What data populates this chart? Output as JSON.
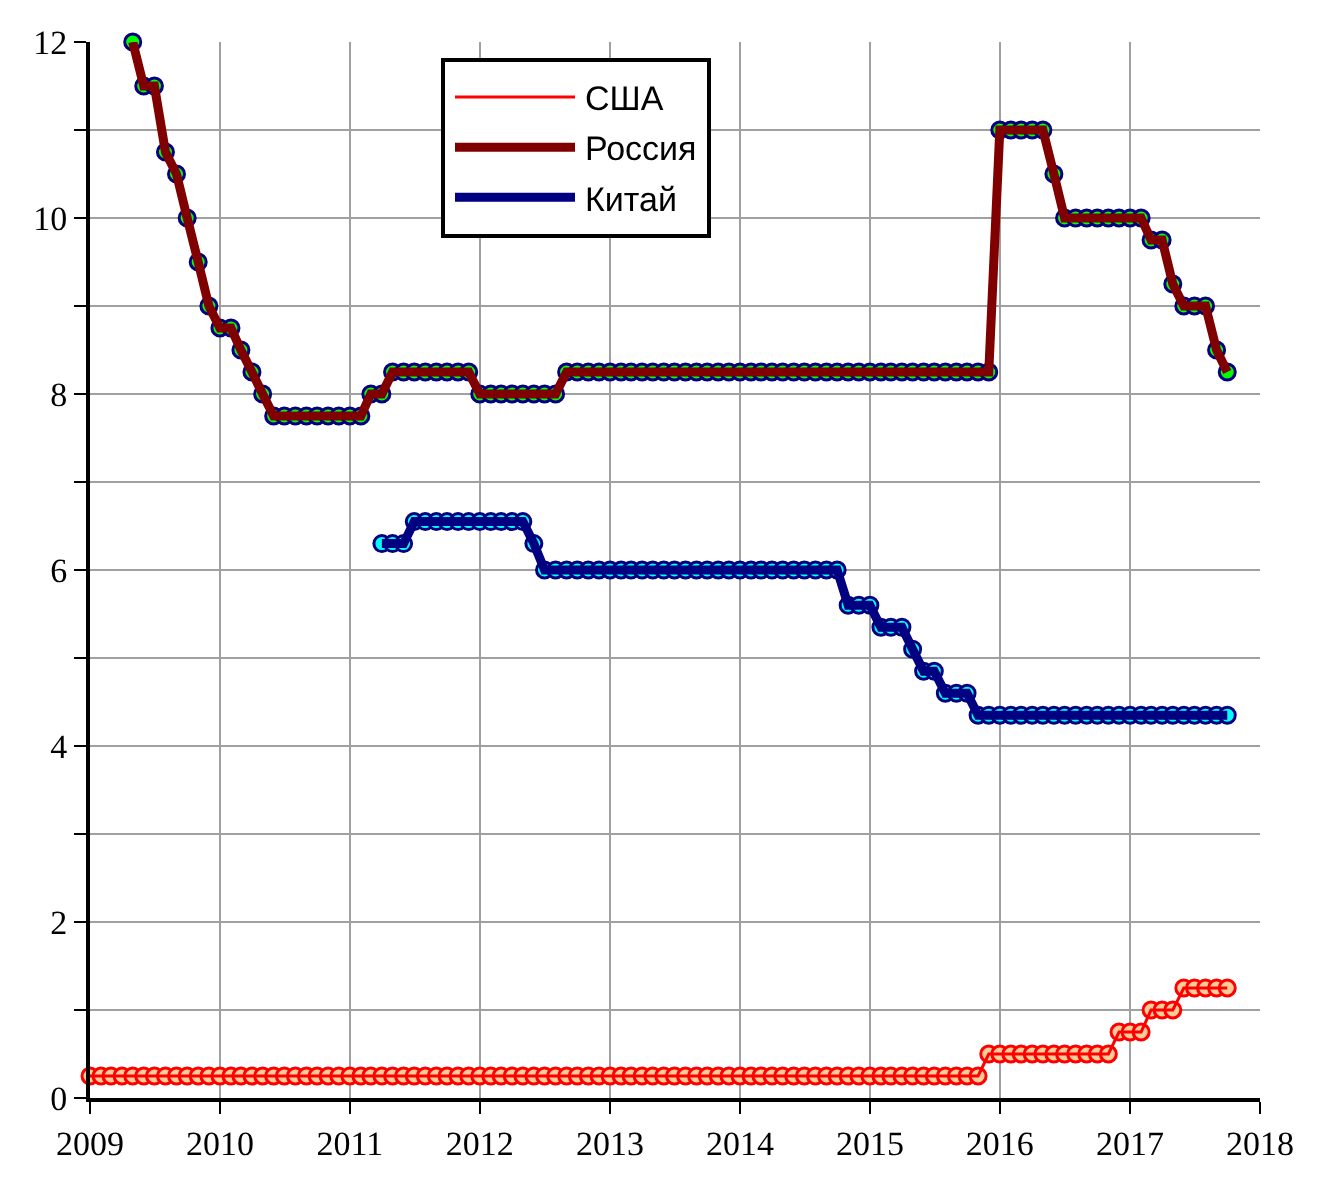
{
  "chart_data": {
    "type": "line",
    "x": [
      "2009-01",
      "2009-02",
      "2009-03",
      "2009-04",
      "2009-05",
      "2009-06",
      "2009-07",
      "2009-08",
      "2009-09",
      "2009-10",
      "2009-11",
      "2009-12",
      "2010-01",
      "2010-02",
      "2010-03",
      "2010-04",
      "2010-05",
      "2010-06",
      "2010-07",
      "2010-08",
      "2010-09",
      "2010-10",
      "2010-11",
      "2010-12",
      "2011-01",
      "2011-02",
      "2011-03",
      "2011-04",
      "2011-05",
      "2011-06",
      "2011-07",
      "2011-08",
      "2011-09",
      "2011-10",
      "2011-11",
      "2011-12",
      "2012-01",
      "2012-02",
      "2012-03",
      "2012-04",
      "2012-05",
      "2012-06",
      "2012-07",
      "2012-08",
      "2012-09",
      "2012-10",
      "2012-11",
      "2012-12",
      "2013-01",
      "2013-02",
      "2013-03",
      "2013-04",
      "2013-05",
      "2013-06",
      "2013-07",
      "2013-08",
      "2013-09",
      "2013-10",
      "2013-11",
      "2013-12",
      "2014-01",
      "2014-02",
      "2014-03",
      "2014-04",
      "2014-05",
      "2014-06",
      "2014-07",
      "2014-08",
      "2014-09",
      "2014-10",
      "2014-11",
      "2014-12",
      "2015-01",
      "2015-02",
      "2015-03",
      "2015-04",
      "2015-05",
      "2015-06",
      "2015-07",
      "2015-08",
      "2015-09",
      "2015-10",
      "2015-11",
      "2015-12",
      "2016-01",
      "2016-02",
      "2016-03",
      "2016-04",
      "2016-05",
      "2016-06",
      "2016-07",
      "2016-08",
      "2016-09",
      "2016-10",
      "2016-11",
      "2016-12",
      "2017-01",
      "2017-02",
      "2017-03",
      "2017-04",
      "2017-05",
      "2017-06",
      "2017-07",
      "2017-08",
      "2017-09",
      "2017-10"
    ],
    "series": [
      {
        "name": "США",
        "color": "#ff0000",
        "values": [
          0.25,
          0.25,
          0.25,
          0.25,
          0.25,
          0.25,
          0.25,
          0.25,
          0.25,
          0.25,
          0.25,
          0.25,
          0.25,
          0.25,
          0.25,
          0.25,
          0.25,
          0.25,
          0.25,
          0.25,
          0.25,
          0.25,
          0.25,
          0.25,
          0.25,
          0.25,
          0.25,
          0.25,
          0.25,
          0.25,
          0.25,
          0.25,
          0.25,
          0.25,
          0.25,
          0.25,
          0.25,
          0.25,
          0.25,
          0.25,
          0.25,
          0.25,
          0.25,
          0.25,
          0.25,
          0.25,
          0.25,
          0.25,
          0.25,
          0.25,
          0.25,
          0.25,
          0.25,
          0.25,
          0.25,
          0.25,
          0.25,
          0.25,
          0.25,
          0.25,
          0.25,
          0.25,
          0.25,
          0.25,
          0.25,
          0.25,
          0.25,
          0.25,
          0.25,
          0.25,
          0.25,
          0.25,
          0.25,
          0.25,
          0.25,
          0.25,
          0.25,
          0.25,
          0.25,
          0.25,
          0.25,
          0.25,
          0.25,
          0.5,
          0.5,
          0.5,
          0.5,
          0.5,
          0.5,
          0.5,
          0.5,
          0.5,
          0.5,
          0.5,
          0.5,
          0.75,
          0.75,
          0.75,
          1.0,
          1.0,
          1.0,
          1.25,
          1.25,
          1.25,
          1.25,
          1.25
        ]
      },
      {
        "name": "Россия",
        "color": "#800000",
        "values": [
          null,
          null,
          null,
          null,
          12,
          11.5,
          11.5,
          10.75,
          10.5,
          10,
          9.5,
          9,
          8.75,
          8.75,
          8.5,
          8.25,
          8,
          7.75,
          7.75,
          7.75,
          7.75,
          7.75,
          7.75,
          7.75,
          7.75,
          7.75,
          8,
          8,
          8.25,
          8.25,
          8.25,
          8.25,
          8.25,
          8.25,
          8.25,
          8.25,
          8,
          8,
          8,
          8,
          8,
          8,
          8,
          8,
          8.25,
          8.25,
          8.25,
          8.25,
          8.25,
          8.25,
          8.25,
          8.25,
          8.25,
          8.25,
          8.25,
          8.25,
          8.25,
          8.25,
          8.25,
          8.25,
          8.25,
          8.25,
          8.25,
          8.25,
          8.25,
          8.25,
          8.25,
          8.25,
          8.25,
          8.25,
          8.25,
          8.25,
          8.25,
          8.25,
          8.25,
          8.25,
          8.25,
          8.25,
          8.25,
          8.25,
          8.25,
          8.25,
          8.25,
          8.25,
          11,
          11,
          11,
          11,
          11,
          10.5,
          10,
          10,
          10,
          10,
          10,
          10,
          10,
          10,
          9.75,
          9.75,
          9.25,
          9,
          9,
          9,
          8.5,
          8.25
        ]
      },
      {
        "name": "Китай",
        "color": "#000080",
        "values": [
          null,
          null,
          null,
          null,
          null,
          null,
          null,
          null,
          null,
          null,
          null,
          null,
          null,
          null,
          null,
          null,
          null,
          null,
          null,
          null,
          null,
          null,
          null,
          null,
          null,
          null,
          null,
          6.3,
          6.3,
          6.3,
          6.55,
          6.55,
          6.55,
          6.55,
          6.55,
          6.55,
          6.55,
          6.55,
          6.55,
          6.55,
          6.55,
          6.3,
          6.0,
          6.0,
          6.0,
          6.0,
          6.0,
          6.0,
          6.0,
          6.0,
          6.0,
          6.0,
          6.0,
          6.0,
          6.0,
          6.0,
          6.0,
          6.0,
          6.0,
          6.0,
          6.0,
          6.0,
          6.0,
          6.0,
          6.0,
          6.0,
          6.0,
          6.0,
          6.0,
          6.0,
          5.6,
          5.6,
          5.6,
          5.35,
          5.35,
          5.35,
          5.1,
          4.85,
          4.85,
          4.6,
          4.6,
          4.6,
          4.35,
          4.35,
          4.35,
          4.35,
          4.35,
          4.35,
          4.35,
          4.35,
          4.35,
          4.35,
          4.35,
          4.35,
          4.35,
          4.35,
          4.35,
          4.35,
          4.35,
          4.35,
          4.35,
          4.35,
          4.35,
          4.35,
          4.35,
          4.35
        ]
      }
    ],
    "xlim": [
      "2009",
      "2018"
    ],
    "xticks": [
      "2009",
      "2010",
      "2011",
      "2012",
      "2013",
      "2014",
      "2015",
      "2016",
      "2017",
      "2018"
    ],
    "ylim": [
      0,
      12
    ],
    "yticks": [
      0,
      {
        "value": 1,
        "label": null
      },
      2,
      {
        "value": 3,
        "label": null
      },
      4,
      {
        "value": 5,
        "label": null
      },
      6,
      {
        "value": 7,
        "label": null
      },
      8,
      {
        "value": 9,
        "label": null
      },
      10,
      {
        "value": 11,
        "label": null
      },
      12
    ],
    "grid": true,
    "legend": "top",
    "marker": "circle",
    "line_style": "solid"
  }
}
